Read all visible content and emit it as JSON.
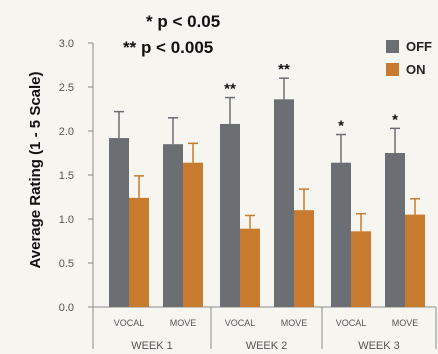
{
  "chart_data": {
    "type": "bar",
    "ylabel": "Average Rating (1 - 5 Scale)",
    "ylim": [
      0,
      3.0
    ],
    "yticks": [
      "0.0",
      "0.5",
      "1.0",
      "1.5",
      "2.0",
      "2.5",
      "3.0"
    ],
    "annotations_text": [
      "* p < 0.05",
      "** p < 0.005"
    ],
    "groups": [
      "WEEK 1",
      "WEEK 2",
      "WEEK 3"
    ],
    "categories": [
      "VOCAL",
      "MOVE",
      "VOCAL",
      "MOVE",
      "VOCAL",
      "MOVE"
    ],
    "series": [
      {
        "name": "OFF",
        "color": "#6b6e73",
        "values": [
          1.92,
          1.85,
          2.08,
          2.36,
          1.64,
          1.75
        ],
        "errors": [
          0.3,
          0.3,
          0.3,
          0.24,
          0.32,
          0.28
        ]
      },
      {
        "name": "ON",
        "color": "#c87a2e",
        "values": [
          1.24,
          1.64,
          0.89,
          1.1,
          0.86,
          1.05
        ],
        "errors": [
          0.25,
          0.22,
          0.15,
          0.24,
          0.2,
          0.18
        ]
      }
    ],
    "significance": [
      "",
      "",
      "**",
      "**",
      "*",
      "*"
    ],
    "legend_position": "top-right",
    "grid": false
  }
}
